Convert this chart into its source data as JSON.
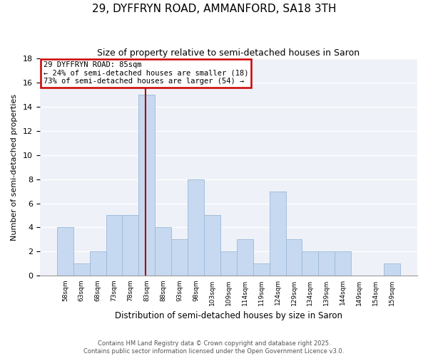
{
  "title": "29, DYFFRYN ROAD, AMMANFORD, SA18 3TH",
  "subtitle": "Size of property relative to semi-detached houses in Saron",
  "xlabel": "Distribution of semi-detached houses by size in Saron",
  "ylabel": "Number of semi-detached properties",
  "bin_labels": [
    "58sqm",
    "63sqm",
    "68sqm",
    "73sqm",
    "78sqm",
    "83sqm",
    "88sqm",
    "93sqm",
    "98sqm",
    "103sqm",
    "109sqm",
    "114sqm",
    "119sqm",
    "124sqm",
    "129sqm",
    "134sqm",
    "139sqm",
    "144sqm",
    "149sqm",
    "154sqm",
    "159sqm"
  ],
  "bar_heights": [
    4,
    1,
    2,
    5,
    5,
    15,
    4,
    3,
    8,
    5,
    2,
    3,
    1,
    7,
    3,
    2,
    2,
    2,
    0,
    0,
    1
  ],
  "bar_color": "#c6d9f0",
  "bar_edge_color": "#9bb8d8",
  "property_bin_index": 5,
  "property_label": "29 DYFFRYN ROAD: 85sqm",
  "annotation_line1": "← 24% of semi-detached houses are smaller (18)",
  "annotation_line2": "73% of semi-detached houses are larger (54) →",
  "red_line_color": "#aa0000",
  "annotation_box_edgecolor": "#cc0000",
  "plot_bg_color": "#eef2f8",
  "ylim": [
    0,
    18
  ],
  "yticks": [
    0,
    2,
    4,
    6,
    8,
    10,
    12,
    14,
    16,
    18
  ],
  "footer_line1": "Contains HM Land Registry data © Crown copyright and database right 2025.",
  "footer_line2": "Contains public sector information licensed under the Open Government Licence v3.0."
}
